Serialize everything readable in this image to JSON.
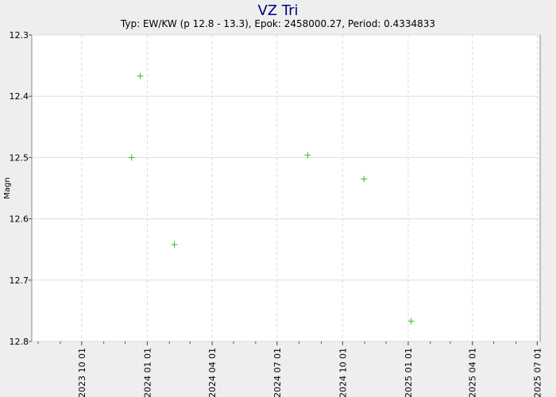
{
  "chart_data": {
    "type": "scatter",
    "title": "VZ Tri",
    "subtitle": "Typ: EW/KW (p 12.8 - 13.3), Epok: 2458000.27, Period: 0.4334833",
    "xlabel": "",
    "ylabel": "Magn",
    "y_inverted": true,
    "ylim": [
      12.3,
      12.8
    ],
    "y_ticks": [
      "12.3",
      "12.4",
      "12.5",
      "12.6",
      "12.7",
      "12.8"
    ],
    "x_axis_type": "date",
    "xlim": [
      "2023-07-23",
      "2025-07-05"
    ],
    "x_ticks": [
      "2023 10 01",
      "2024 01 01",
      "2024 04 01",
      "2024 07 01",
      "2024 10 01",
      "2025 01 01",
      "2025 04 01",
      "2025 07 01"
    ],
    "grid": true,
    "marker": "+",
    "colors": {
      "points": "#33bb33",
      "title": "#000080",
      "grid": "#dddddd",
      "background": "#ffffff"
    },
    "series": [
      {
        "x": [
          "2023-12-10",
          "2023-12-22",
          "2024-02-08",
          "2024-08-13",
          "2024-10-31",
          "2025-01-05"
        ],
        "y": [
          12.5,
          12.367,
          12.642,
          12.496,
          12.535,
          12.767
        ]
      }
    ]
  }
}
